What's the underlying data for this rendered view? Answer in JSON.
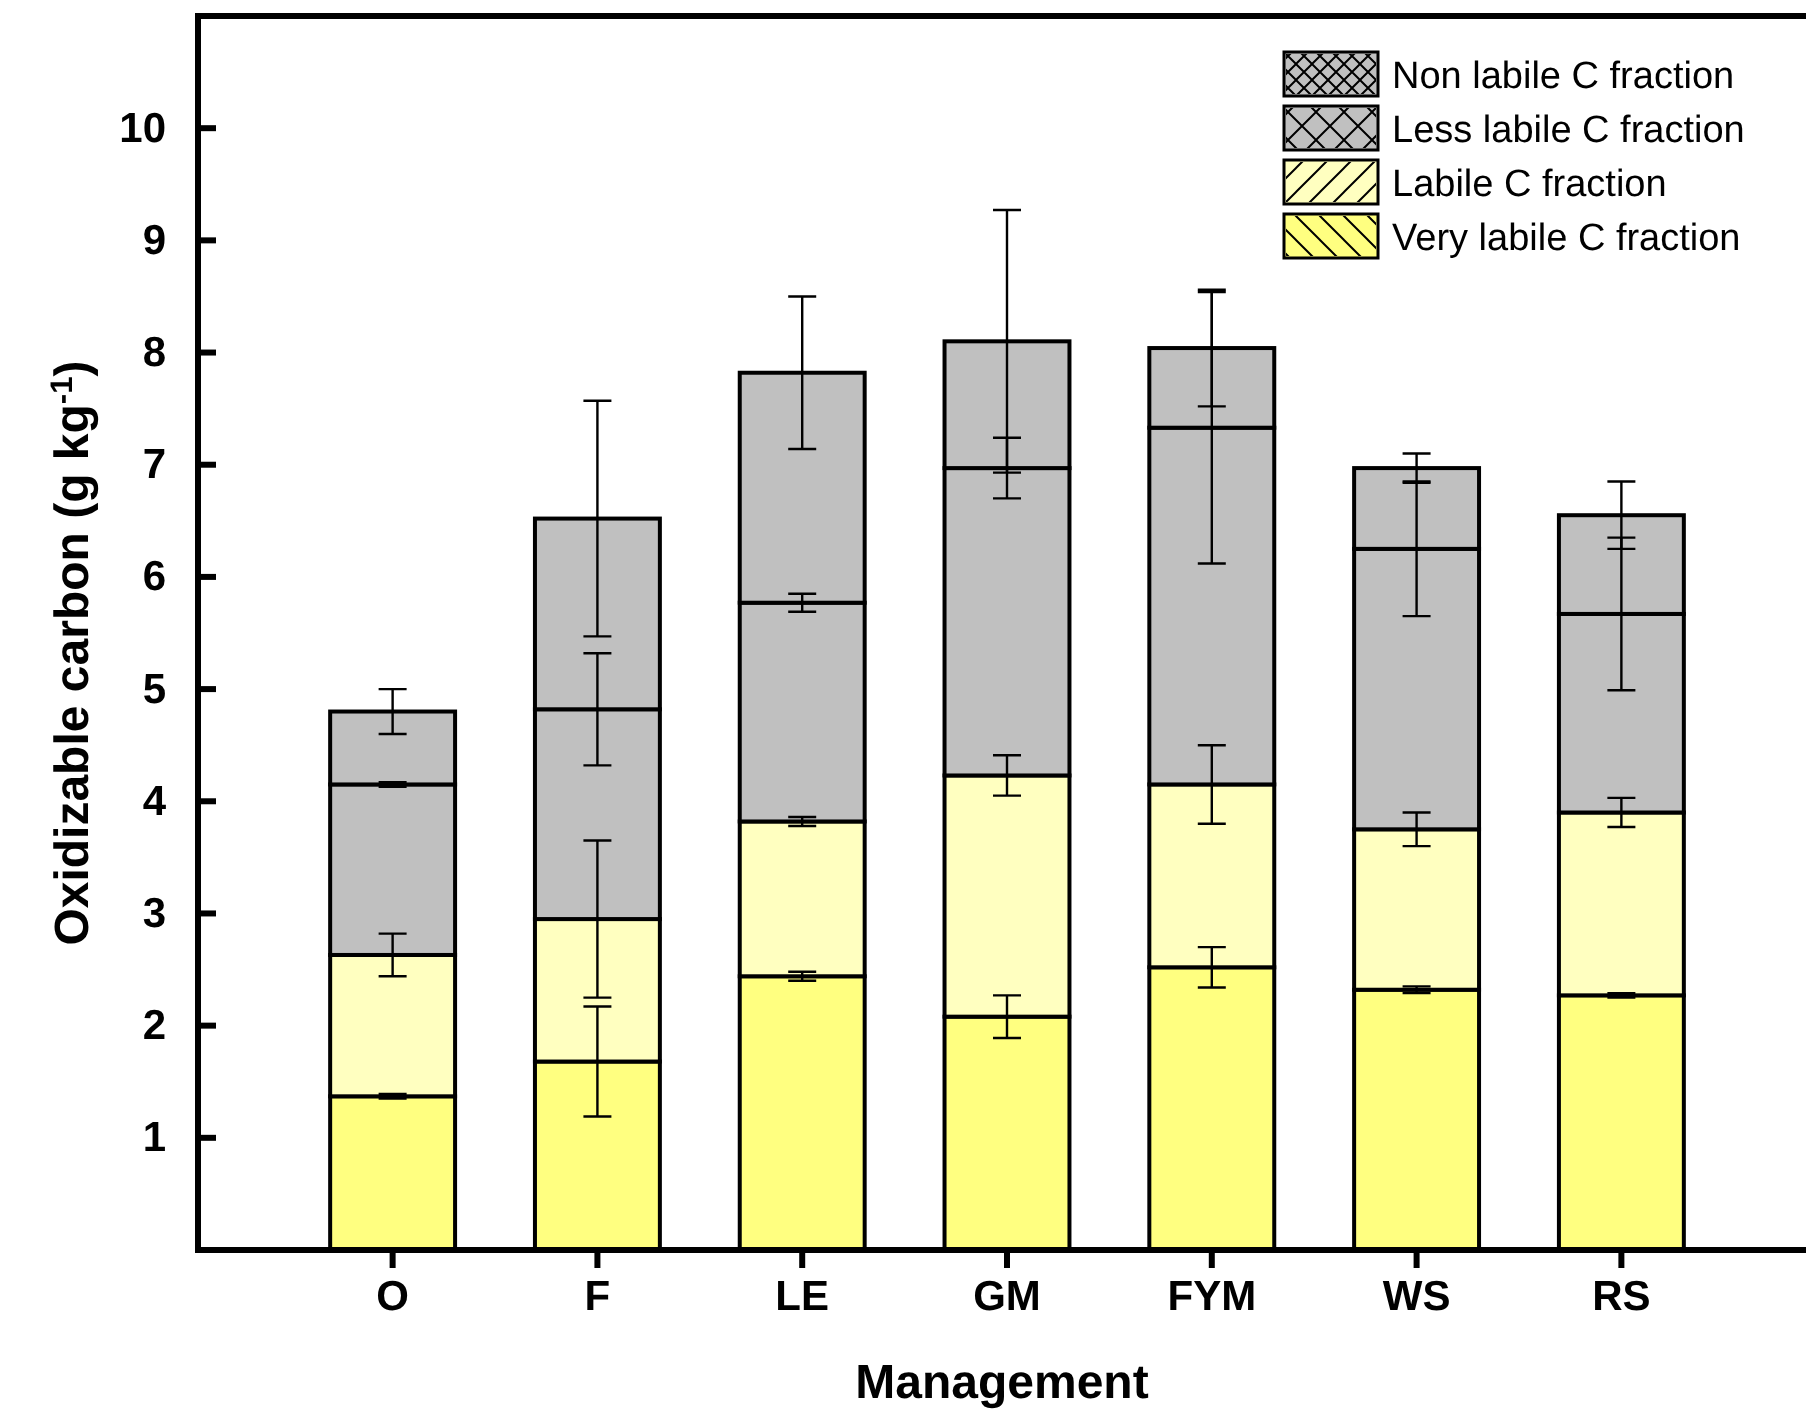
{
  "chart_data": {
    "type": "bar",
    "stacked": true,
    "xlabel": "Management",
    "ylabel": "Oxidizable carbon (g kg$^{-1}$)",
    "categories": [
      "O",
      "F",
      "LE",
      "GM",
      "FYM",
      "WS",
      "RS"
    ],
    "ylim": [
      0,
      11
    ],
    "yticks": [
      1,
      2,
      3,
      4,
      5,
      6,
      7,
      8,
      9,
      10
    ],
    "legend": "top right",
    "grid": false,
    "series": [
      {
        "name": "Very labile C fraction",
        "color": "#ffff80",
        "values": [
          1.37,
          1.68,
          2.44,
          2.08,
          2.52,
          2.32,
          2.27
        ],
        "errors": [
          0.02,
          0.49,
          0.04,
          0.19,
          0.18,
          0.03,
          0.02
        ]
      },
      {
        "name": "Labile C fraction",
        "color": "#ffffc0",
        "values": [
          1.26,
          1.27,
          1.38,
          2.15,
          1.63,
          1.43,
          1.63
        ],
        "errors": [
          0.19,
          0.7,
          0.04,
          0.18,
          0.35,
          0.15,
          0.13
        ]
      },
      {
        "name": "Less labile C fraction",
        "color": "#c0c0c0",
        "values": [
          1.52,
          1.87,
          1.95,
          2.74,
          3.18,
          2.5,
          1.77
        ],
        "errors": [
          0.02,
          0.5,
          0.08,
          0.27,
          1.21,
          0.6,
          0.68
        ]
      },
      {
        "name": "Non labile C fraction",
        "color": "#c0c0c0",
        "values": [
          0.65,
          1.7,
          2.05,
          1.13,
          0.71,
          0.72,
          0.88
        ],
        "errors": [
          0.2,
          1.05,
          0.68,
          1.17,
          0.52,
          0.13,
          0.3
        ]
      }
    ]
  }
}
